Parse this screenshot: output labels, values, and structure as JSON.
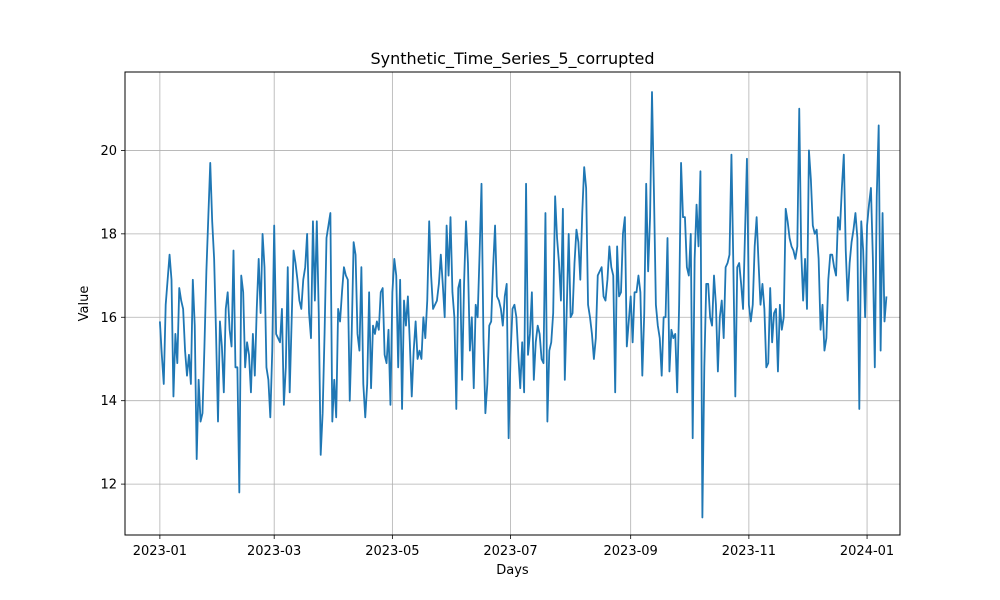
{
  "chart_data": {
    "type": "line",
    "title": "Synthetic_Time_Series_5_corrupted",
    "xlabel": "Days",
    "ylabel": "Value",
    "x_start": "2023-01-01",
    "x_end": "2023-12-31",
    "x_ticks": [
      "2023-01-01",
      "2023-03-01",
      "2023-05-01",
      "2023-07-01",
      "2023-09-01",
      "2023-11-01",
      "2024-01-01"
    ],
    "x_tick_labels": [
      "2023-01",
      "2023-03",
      "2023-05",
      "2023-07",
      "2023-09",
      "2023-11",
      "2024-01"
    ],
    "xlim": [
      "2022-12-14",
      "2024-01-18"
    ],
    "ylim": [
      10.78,
      21.88
    ],
    "y_ticks": [
      12,
      14,
      16,
      18,
      20
    ],
    "y_tick_labels": [
      "12",
      "14",
      "16",
      "18",
      "20"
    ],
    "grid": true,
    "line_color": "#1f77b4",
    "series": [
      {
        "values": [
          15.9,
          15.1,
          14.4,
          16.3,
          16.9,
          17.5,
          16.9,
          14.1,
          15.6,
          14.9,
          16.7,
          16.4,
          16.2,
          15.2,
          14.6,
          15.1,
          14.4,
          16.9,
          15.8,
          12.6,
          14.5,
          13.5,
          13.7,
          15.3,
          17.1,
          18.4,
          19.7,
          18.3,
          17.4,
          15.6,
          13.5,
          15.9,
          15.3,
          14.2,
          16.2,
          16.6,
          15.7,
          15.3,
          17.6,
          14.8,
          14.8,
          11.8,
          17.0,
          16.6,
          14.8,
          15.4,
          15.1,
          14.2,
          15.6,
          14.6,
          16.2,
          17.4,
          16.1,
          18.0,
          17.2,
          14.8,
          14.5,
          13.6,
          15.2,
          18.2,
          15.6,
          15.5,
          15.4,
          16.2,
          13.9,
          14.8,
          17.2,
          14.2,
          15.9,
          17.6,
          17.3,
          16.9,
          16.4,
          16.2,
          16.9,
          17.2,
          18.0,
          16.1,
          15.5,
          18.3,
          16.4,
          18.3,
          16.1,
          12.7,
          13.7,
          15.6,
          17.9,
          18.2,
          18.5,
          13.5,
          14.5,
          13.6,
          16.2,
          15.9,
          16.6,
          17.2,
          17.0,
          16.9,
          14.0,
          15.6,
          17.8,
          17.5,
          15.6,
          15.2,
          17.2,
          14.4,
          13.6,
          14.4,
          16.6,
          14.3,
          15.8,
          15.6,
          15.9,
          15.7,
          16.6,
          16.7,
          15.1,
          14.9,
          15.7,
          13.9,
          16.6,
          17.4,
          17.0,
          14.8,
          16.9,
          13.8,
          16.4,
          15.8,
          16.5,
          15.4,
          14.1,
          15.2,
          15.9,
          15.0,
          15.2,
          15.0,
          16.0,
          15.5,
          16.4,
          18.3,
          17.0,
          16.2,
          16.3,
          16.4,
          16.8,
          17.5,
          16.8,
          16.0,
          18.2,
          17.0,
          18.4,
          16.6,
          16.0,
          13.8,
          16.7,
          16.9,
          14.5,
          16.8,
          18.3,
          17.3,
          15.2,
          16.0,
          14.3,
          16.3,
          16.0,
          17.5,
          19.2,
          15.5,
          13.7,
          14.4,
          15.8,
          15.9,
          17.2,
          18.2,
          16.5,
          16.4,
          16.2,
          15.8,
          16.5,
          16.8,
          13.1,
          15.1,
          16.2,
          16.3,
          16.0,
          15.1,
          14.3,
          15.4,
          14.2,
          19.2,
          15.1,
          15.6,
          16.6,
          14.5,
          15.4,
          15.8,
          15.6,
          15.0,
          14.9,
          18.5,
          13.5,
          15.2,
          15.4,
          16.1,
          18.9,
          17.9,
          17.3,
          16.4,
          18.6,
          14.5,
          16.2,
          18.0,
          16.0,
          16.1,
          17.3,
          18.1,
          17.8,
          16.9,
          18.5,
          19.6,
          19.1,
          16.3,
          16.0,
          15.6,
          15.0,
          15.5,
          17.0,
          17.1,
          17.2,
          16.5,
          16.4,
          16.9,
          17.7,
          17.2,
          17.0,
          14.2,
          17.7,
          16.5,
          16.6,
          18.0,
          18.4,
          15.3,
          15.9,
          16.5,
          15.4,
          16.6,
          16.6,
          17.0,
          16.6,
          14.6,
          16.1,
          19.2,
          17.1,
          18.4,
          21.4,
          19.0,
          16.3,
          15.8,
          15.5,
          14.6,
          16.0,
          16.0,
          17.9,
          14.7,
          15.7,
          15.5,
          15.6,
          14.2,
          16.3,
          19.7,
          18.4,
          18.4,
          17.2,
          17.0,
          18.0,
          13.1,
          17.4,
          18.7,
          17.7,
          19.5,
          11.2,
          14.8,
          16.8,
          16.8,
          16.0,
          15.8,
          17.0,
          16.3,
          14.7,
          16.0,
          16.4,
          15.5,
          17.2,
          17.3,
          17.5,
          19.9,
          17.2,
          14.1,
          17.2,
          17.3,
          16.8,
          16.2,
          18.0,
          19.8,
          16.3,
          15.9,
          16.3,
          17.7,
          18.4,
          17.3,
          16.3,
          16.8,
          16.2,
          14.8,
          14.9,
          16.7,
          15.4,
          16.1,
          16.2,
          14.7,
          16.3,
          15.7,
          16.0,
          18.6,
          18.3,
          17.9,
          17.7,
          17.6,
          17.4,
          17.7,
          21.0,
          17.6,
          16.4,
          17.4,
          16.2,
          20.0,
          19.3,
          18.2,
          18.0,
          18.1,
          17.4,
          15.7,
          16.3,
          15.2,
          15.5,
          16.9,
          17.5,
          17.5,
          17.2,
          17.0,
          18.4,
          18.1,
          19.1,
          19.9,
          17.6,
          16.4,
          17.3,
          17.8,
          18.1,
          18.5,
          17.9,
          13.8,
          18.3,
          17.6,
          16.0,
          18.2,
          18.7,
          19.1,
          17.4,
          14.8,
          18.9,
          20.6,
          15.2,
          18.5,
          15.9,
          16.5
        ]
      }
    ]
  }
}
